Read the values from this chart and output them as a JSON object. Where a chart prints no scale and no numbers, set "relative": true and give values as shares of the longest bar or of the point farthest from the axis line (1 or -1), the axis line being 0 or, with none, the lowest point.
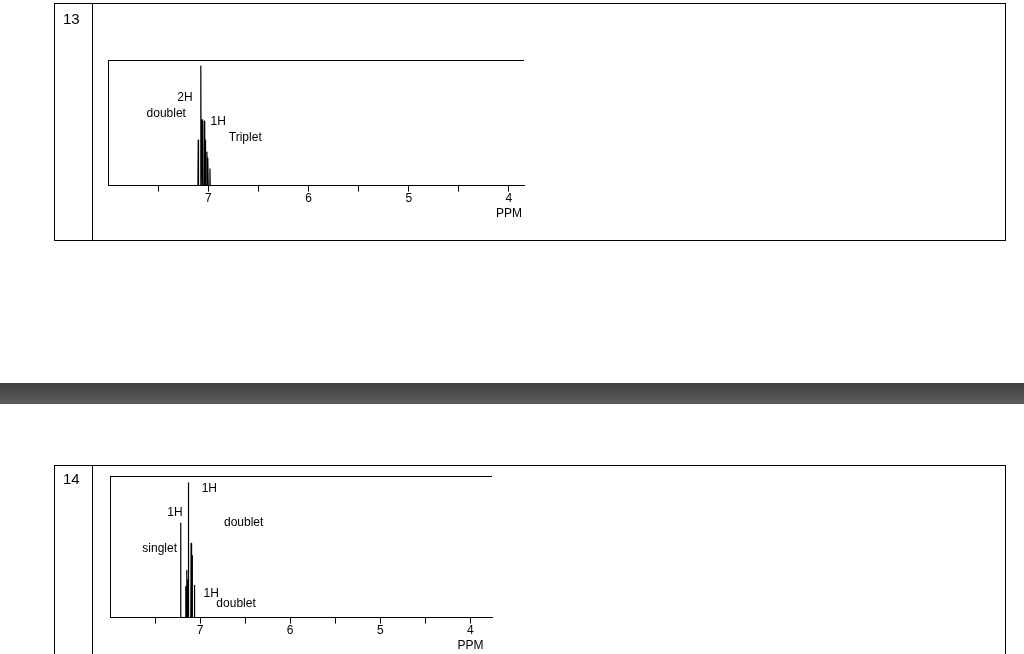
{
  "chart_data": [
    {
      "type": "line",
      "title": "13",
      "xlabel": "PPM",
      "relative": true,
      "tick_labels": "x",
      "grid": false,
      "legend": false,
      "marker": "none",
      "line_style": "solid",
      "xlim": [
        8.0,
        3.85
      ],
      "xticks": [
        {
          "value": 7.5,
          "label": null
        },
        7,
        {
          "value": 6.5,
          "label": null
        },
        6,
        {
          "value": 5.5,
          "label": null
        },
        5,
        {
          "value": 4.5,
          "label": null
        },
        4
      ],
      "x": [
        8.0,
        7.13,
        7.103,
        7.1,
        7.097,
        7.077,
        7.074,
        7.071,
        7.063,
        7.06,
        7.057,
        7.043,
        7.04,
        7.037,
        7.033,
        7.03,
        7.027,
        7.016,
        7.013,
        7.01,
        7.006,
        7.003,
        7.0,
        6.986,
        6.983,
        6.98,
        6.95,
        3.85
      ],
      "series": [
        {
          "color": "#000000",
          "values": [
            0,
            0,
            0,
            0.38,
            0,
            0,
            1,
            0,
            0,
            0.55,
            0,
            0,
            0.54,
            0,
            0,
            0.38,
            0,
            0,
            0.28,
            0,
            0,
            0.23,
            0,
            0,
            0.14,
            0,
            0,
            0
          ]
        }
      ],
      "annotations": [
        "2H",
        "doublet",
        "1H",
        "Triplet"
      ]
    },
    {
      "type": "line",
      "title": "14",
      "xlabel": "PPM",
      "relative": true,
      "tick_labels": "x",
      "grid": false,
      "legend": false,
      "marker": "none",
      "line_style": "solid",
      "xlim": [
        8.0,
        3.76
      ],
      "xticks": [
        {
          "value": 7.5,
          "label": null
        },
        7,
        {
          "value": 6.5,
          "label": null
        },
        6,
        {
          "value": 5.5,
          "label": null
        },
        5,
        {
          "value": 4.5,
          "label": null
        },
        4
      ],
      "x": [
        8.0,
        7.24,
        7.219,
        7.216,
        7.213,
        7.163,
        7.16,
        7.157,
        7.152,
        7.149,
        7.146,
        7.141,
        7.138,
        7.135,
        7.133,
        7.13,
        7.127,
        7.103,
        7.1,
        7.097,
        7.092,
        7.089,
        7.086,
        7.066,
        7.063,
        7.06,
        7.04,
        3.76
      ],
      "series": [
        {
          "color": "#000000",
          "values": [
            0,
            0,
            0,
            0.7,
            0,
            0,
            0.23,
            0,
            0,
            0.35,
            0,
            0,
            0.28,
            0,
            0,
            1,
            0,
            0,
            0.55,
            0,
            0,
            0.46,
            0,
            0,
            0.24,
            0,
            0,
            0
          ]
        }
      ],
      "annotations": [
        "1H",
        "1H",
        "doublet",
        "singlet",
        "1H",
        "doublet"
      ]
    }
  ]
}
